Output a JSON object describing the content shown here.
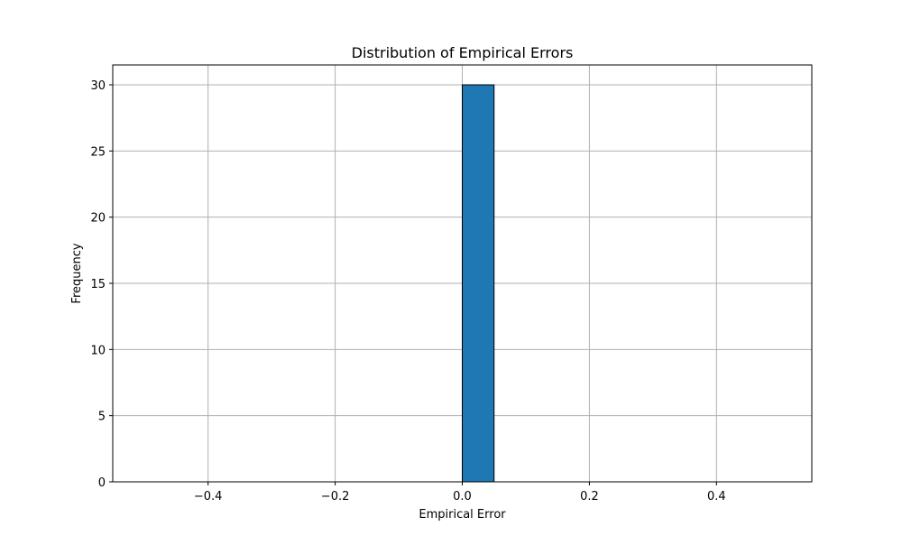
{
  "chart_data": {
    "type": "bar",
    "title": "Distribution of Empirical Errors",
    "xlabel": "Empirical Error",
    "ylabel": "Frequency",
    "xlim": [
      -0.55,
      0.55
    ],
    "ylim": [
      0,
      31.5
    ],
    "grid": true,
    "x_ticks": [
      -0.4,
      -0.2,
      0.0,
      0.2,
      0.4
    ],
    "x_tick_labels": [
      "−0.4",
      "−0.2",
      "0.0",
      "0.2",
      "0.4"
    ],
    "y_ticks": [
      0,
      5,
      10,
      15,
      20,
      25,
      30
    ],
    "y_tick_labels": [
      "0",
      "5",
      "10",
      "15",
      "20",
      "25",
      "30"
    ],
    "bin_edges": [
      -0.5,
      -0.45,
      -0.4,
      -0.35,
      -0.3,
      -0.25,
      -0.2,
      -0.15,
      -0.1,
      -0.05,
      0.0,
      0.05,
      0.1,
      0.15,
      0.2,
      0.25,
      0.3,
      0.35,
      0.4,
      0.45,
      0.5
    ],
    "counts": [
      0,
      0,
      0,
      0,
      0,
      0,
      0,
      0,
      0,
      0,
      30,
      0,
      0,
      0,
      0,
      0,
      0,
      0,
      0,
      0
    ],
    "bar_color": "#1f77b4",
    "edge_color": "#000000",
    "grid_color": "#b0b0b0"
  }
}
